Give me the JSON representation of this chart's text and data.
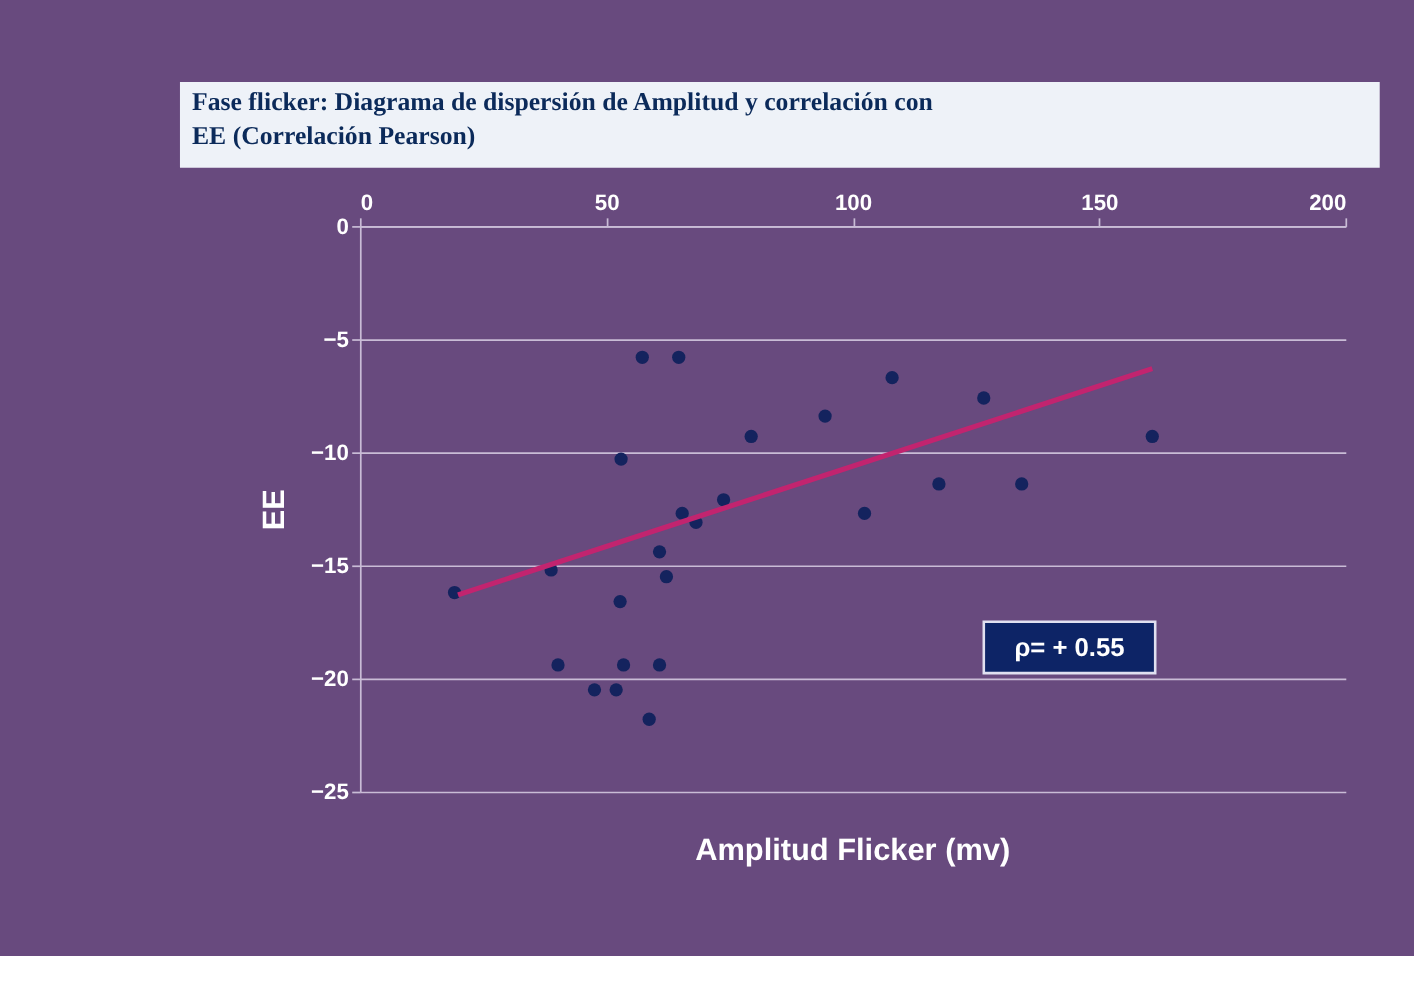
{
  "chart_data": {
    "type": "scatter",
    "title": "Fase flicker: Diagrama de dispersión de Amplitud y correlación con EE  (Correlación Pearson)",
    "xlabel": "Amplitud Flicker (mv)",
    "ylabel": "EE",
    "series": [
      {
        "marker": "circle",
        "color": "#14235e",
        "x": [
          19.2,
          38.8,
          40.2,
          47.6,
          52,
          52.8,
          53.5,
          53,
          57.3,
          58.7,
          60.8,
          60.8,
          62.2,
          64.7,
          65.4,
          68.2,
          73.8,
          79.4,
          94.4,
          102.4,
          108,
          117.5,
          126.6,
          134.3,
          160.8
        ],
        "values": [
          -16.2,
          -15.2,
          -19.4,
          -20.5,
          -20.5,
          -16.6,
          -19.4,
          -10.3,
          -5.8,
          -21.8,
          -19.4,
          -14.4,
          -15.5,
          -5.8,
          -12.7,
          -13.1,
          -12.1,
          -9.3,
          -8.4,
          -12.7,
          -6.7,
          -11.4,
          -7.6,
          -11.4,
          -9.3
        ]
      },
      {
        "type": "line",
        "marker": "none",
        "color": "#c2246f",
        "x": [
          19.9,
          160.8
        ],
        "values": [
          -16.3,
          -6.3
        ]
      }
    ],
    "xlim": [
      0,
      200
    ],
    "xticks": [
      0,
      50,
      100,
      150,
      200
    ],
    "ylim": [
      -25,
      0
    ],
    "yticks": [
      0,
      -5,
      -10,
      -15,
      -20,
      -25
    ],
    "grid": "y",
    "annotations": [
      "ρ= + 0.55"
    ]
  }
}
